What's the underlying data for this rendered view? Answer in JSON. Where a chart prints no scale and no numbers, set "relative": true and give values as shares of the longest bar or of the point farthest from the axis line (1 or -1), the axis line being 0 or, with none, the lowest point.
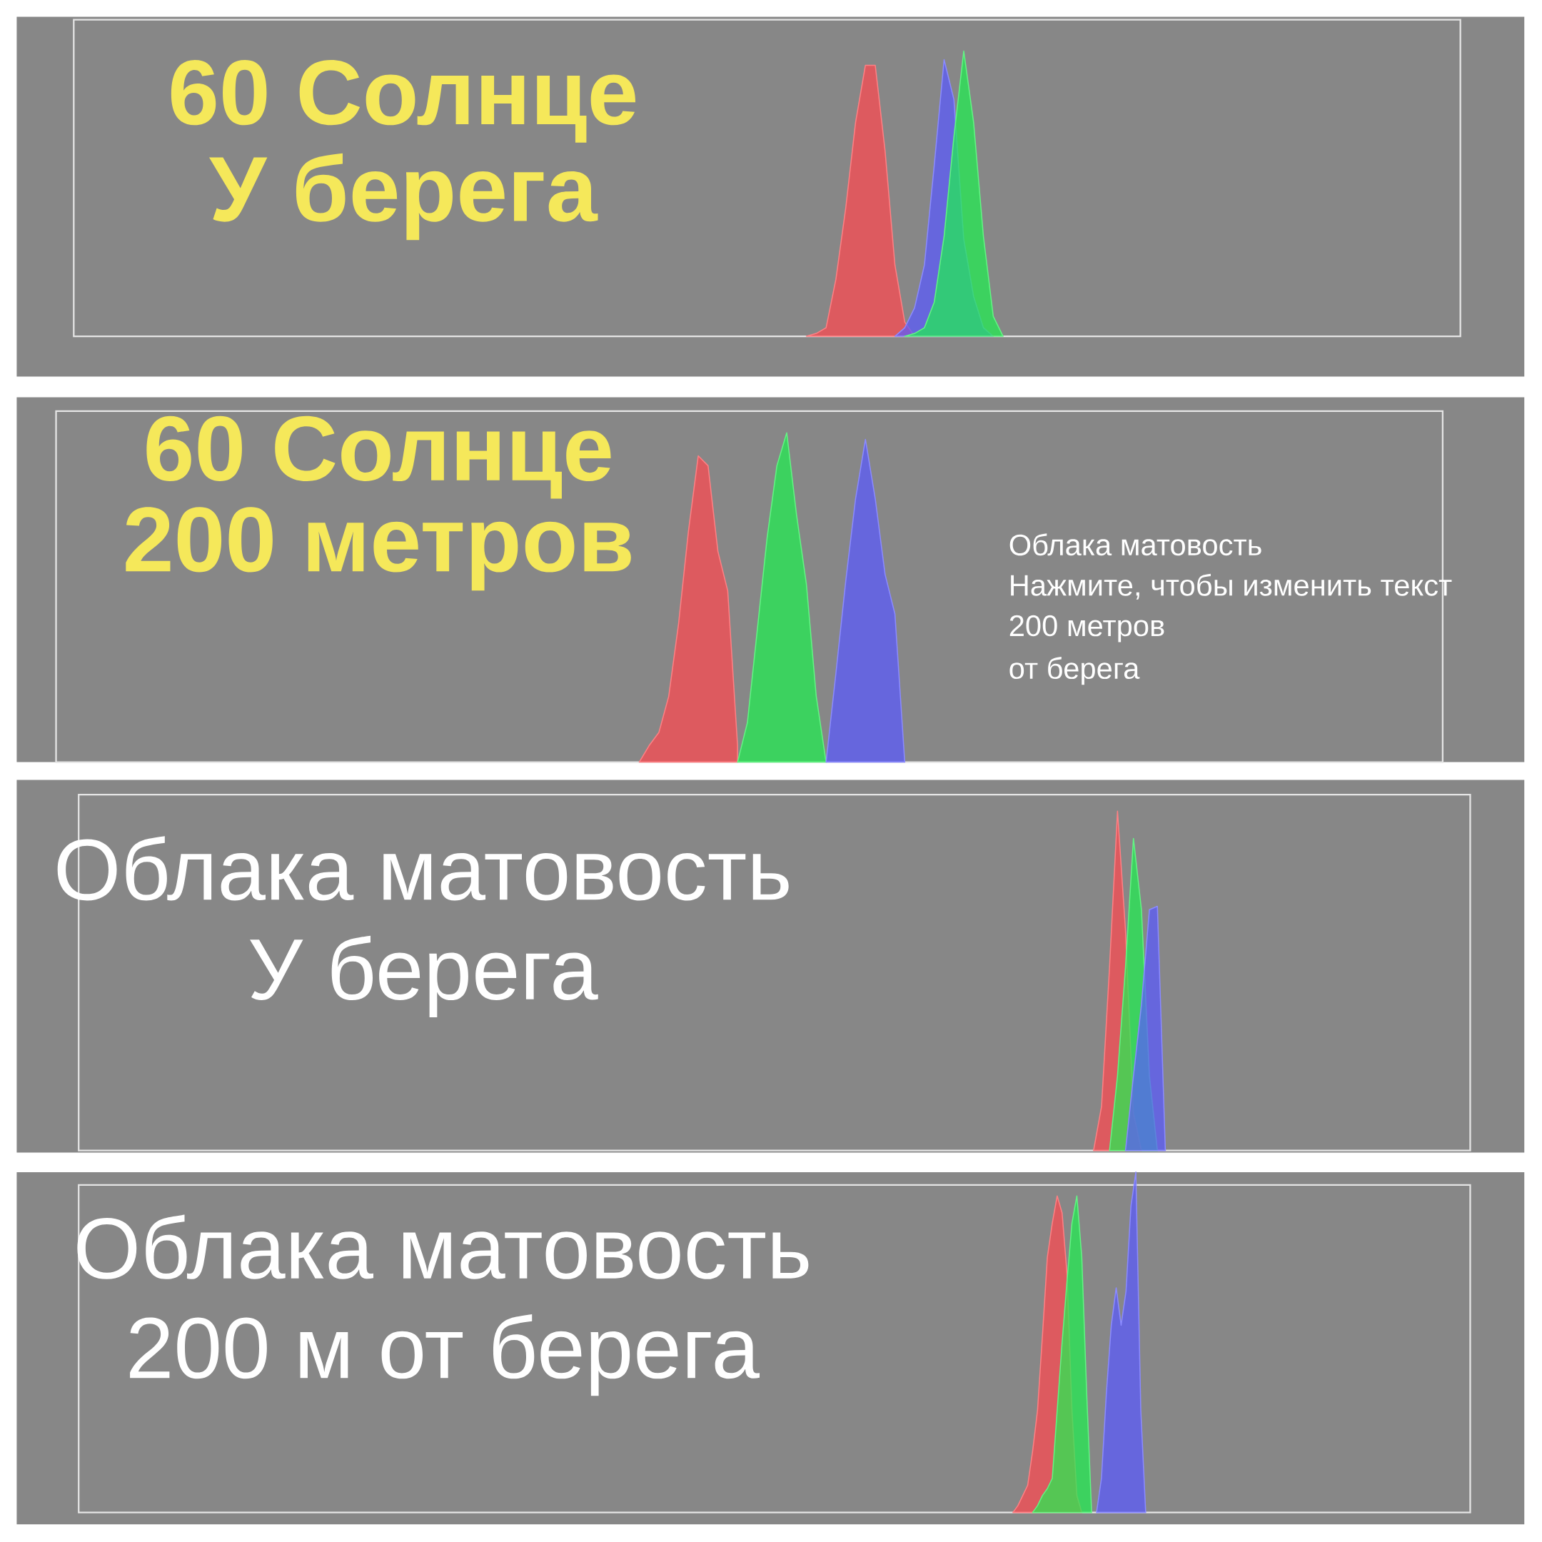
{
  "chart_data": [
    {
      "type": "area",
      "title": "60 Солнце",
      "subtitle": "У берега",
      "relative": true,
      "categories": [
        null,
        null,
        null,
        null,
        null,
        null,
        null,
        null,
        null,
        null,
        null,
        null,
        null,
        null,
        null,
        null,
        null,
        null,
        null,
        null,
        null
      ],
      "series": [
        {
          "color": "#ff4a50",
          "values": [
            0,
            0.01,
            0.03,
            0.2,
            0.45,
            0.75,
            0.95,
            0.95,
            0.65,
            0.25,
            0.05,
            0,
            null,
            null,
            null,
            null,
            null,
            null,
            null,
            null,
            null
          ]
        },
        {
          "color": "#5a5aff",
          "values": [
            null,
            null,
            null,
            null,
            null,
            null,
            null,
            null,
            null,
            0,
            0.03,
            0.1,
            0.25,
            0.6,
            0.97,
            0.83,
            0.34,
            0.14,
            0.03,
            0,
            null
          ]
        },
        {
          "color": "#20f050",
          "values": [
            null,
            null,
            null,
            null,
            null,
            null,
            null,
            null,
            null,
            null,
            0,
            0.01,
            0.03,
            0.12,
            0.35,
            0.7,
            1,
            0.75,
            0.35,
            0.07,
            0
          ]
        }
      ]
    },
    {
      "type": "area",
      "title": "60 Солнце",
      "subtitle": "200 метров",
      "relative": true,
      "annotations": [
        "Облака матовость",
        "Нажмите, чтобы изменить текст",
        "200 метров",
        "от берега"
      ],
      "categories": [
        null,
        null,
        null,
        null,
        null,
        null,
        null,
        null,
        null,
        null,
        null,
        null,
        null,
        null,
        null,
        null,
        null,
        null,
        null,
        null,
        null,
        null,
        null,
        null,
        null,
        null,
        null,
        null
      ],
      "series": [
        {
          "color": "#ff4a50",
          "values": [
            0,
            0.05,
            0.09,
            0.2,
            0.42,
            0.7,
            0.93,
            0.9,
            0.64,
            0.52,
            0.05,
            null,
            null,
            null,
            null,
            null,
            null,
            null,
            null,
            null,
            null,
            null,
            null,
            null,
            null,
            null,
            null,
            null
          ]
        },
        {
          "color": "#20f050",
          "values": [
            null,
            null,
            null,
            null,
            null,
            null,
            null,
            null,
            null,
            null,
            0,
            0.12,
            0.4,
            0.68,
            0.9,
            1,
            0.75,
            0.54,
            0.2,
            0,
            null,
            null,
            null,
            null,
            null,
            null,
            null,
            null
          ]
        },
        {
          "color": "#5a5aff",
          "values": [
            null,
            null,
            null,
            null,
            null,
            null,
            null,
            null,
            null,
            null,
            null,
            null,
            null,
            null,
            null,
            null,
            null,
            null,
            null,
            0,
            0.27,
            0.55,
            0.8,
            0.98,
            0.8,
            0.57,
            0.45,
            0
          ]
        }
      ]
    },
    {
      "type": "area",
      "title": "Облака матовость",
      "subtitle": "У берега",
      "relative": true,
      "categories": [
        null,
        null,
        null,
        null,
        null,
        null,
        null,
        null,
        null,
        null
      ],
      "series": [
        {
          "color": "#ff4a50",
          "values": [
            0,
            0.13,
            0.54,
            1,
            0.65,
            0.11,
            0,
            null,
            null,
            null
          ]
        },
        {
          "color": "#20f050",
          "values": [
            null,
            null,
            0,
            0.22,
            0.54,
            0.92,
            0.71,
            0.22,
            0,
            null
          ]
        },
        {
          "color": "#5a5aff",
          "values": [
            null,
            null,
            null,
            null,
            0,
            0.22,
            0.43,
            0.71,
            0.72,
            0
          ]
        }
      ]
    },
    {
      "type": "area",
      "title": "Облака матовость",
      "subtitle": "200 м от берега",
      "relative": true,
      "categories": [
        null,
        null,
        null,
        null,
        null,
        null,
        null,
        null,
        null,
        null,
        null,
        null,
        null,
        null,
        null,
        null,
        null,
        null,
        null,
        null,
        null,
        null,
        null,
        null,
        null,
        null,
        null,
        null
      ],
      "series": [
        {
          "color": "#ff4a50",
          "values": [
            0,
            0.02,
            0.05,
            0.08,
            0.18,
            0.3,
            0.52,
            0.75,
            0.85,
            0.93,
            0.88,
            0.7,
            0.3,
            0.05,
            0,
            null,
            null,
            null,
            null,
            null,
            null,
            null,
            null,
            null,
            null,
            null,
            null,
            null
          ]
        },
        {
          "color": "#20f050",
          "values": [
            null,
            null,
            null,
            null,
            0,
            0.02,
            0.05,
            0.07,
            0.1,
            0.3,
            0.5,
            0.68,
            0.85,
            0.93,
            0.75,
            0.35,
            0,
            null,
            null,
            null,
            null,
            null,
            null,
            null,
            null,
            null,
            null,
            null
          ]
        },
        {
          "color": "#5a5aff",
          "values": [
            null,
            null,
            null,
            null,
            null,
            null,
            null,
            null,
            null,
            null,
            null,
            null,
            null,
            null,
            null,
            null,
            null,
            0,
            0.1,
            0.35,
            0.55,
            0.66,
            0.55,
            0.65,
            0.9,
            1,
            0.3,
            0
          ]
        }
      ]
    }
  ]
}
